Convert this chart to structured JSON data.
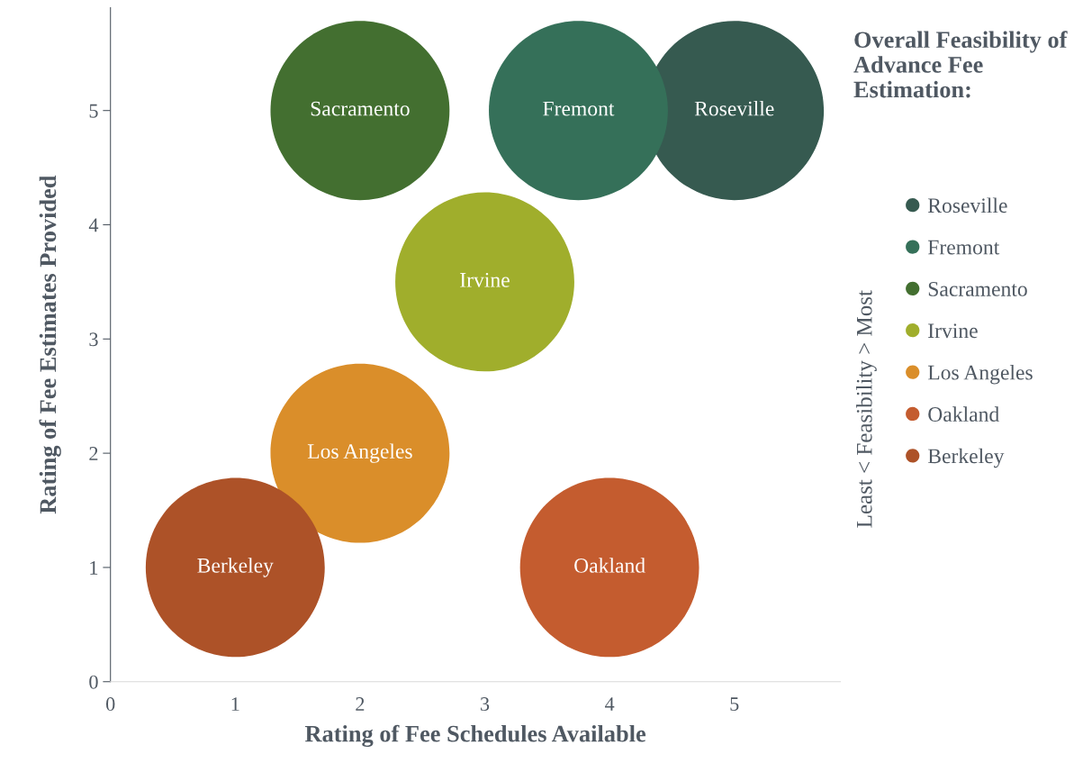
{
  "chart_data": {
    "type": "bubble",
    "xlabel": "Rating of Fee Schedules Available",
    "ylabel": "Rating of Fee Estimates Provided",
    "legend_title": "Overall Feasibility of Advance Fee Estimation:",
    "legend": "right",
    "xlim": [
      0,
      5.85
    ],
    "ylim": [
      0,
      5.9
    ],
    "xticks": [
      0,
      1,
      2,
      3,
      4,
      5
    ],
    "yticks": [
      0,
      1,
      2,
      3,
      4,
      5
    ],
    "grid": false,
    "annotations": [
      "Least < Feasibility > Most"
    ],
    "series": [
      {
        "name": "Roseville",
        "color": "#365a50",
        "x": [
          5
        ],
        "values": [
          5
        ],
        "sizes": [
          1
        ]
      },
      {
        "name": "Fremont",
        "color": "#357059",
        "x": [
          3.75
        ],
        "values": [
          5
        ],
        "sizes": [
          1
        ]
      },
      {
        "name": "Sacramento",
        "color": "#436f30",
        "x": [
          2
        ],
        "values": [
          5
        ],
        "sizes": [
          1
        ]
      },
      {
        "name": "Irvine",
        "color": "#a0ae2c",
        "x": [
          3
        ],
        "values": [
          3.5
        ],
        "sizes": [
          1
        ]
      },
      {
        "name": "Los Angeles",
        "color": "#da8e2a",
        "x": [
          2
        ],
        "values": [
          2
        ],
        "sizes": [
          1
        ]
      },
      {
        "name": "Oakland",
        "color": "#c45c2f",
        "x": [
          4
        ],
        "values": [
          1
        ],
        "sizes": [
          1
        ]
      },
      {
        "name": "Berkeley",
        "color": "#ad5228",
        "x": [
          1
        ],
        "values": [
          1
        ],
        "sizes": [
          1
        ]
      }
    ]
  }
}
